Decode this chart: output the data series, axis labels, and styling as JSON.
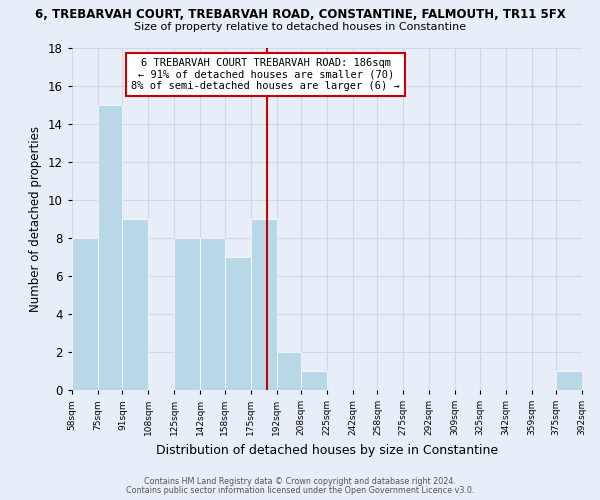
{
  "title_top": "6, TREBARVAH COURT, TREBARVAH ROAD, CONSTANTINE, FALMOUTH, TR11 5FX",
  "title_sub": "Size of property relative to detached houses in Constantine",
  "xlabel": "Distribution of detached houses by size in Constantine",
  "ylabel": "Number of detached properties",
  "bin_edges": [
    58,
    75,
    91,
    108,
    125,
    142,
    158,
    175,
    192,
    208,
    225,
    242,
    258,
    275,
    292,
    309,
    325,
    342,
    359,
    375,
    392
  ],
  "counts": [
    8,
    15,
    9,
    0,
    8,
    8,
    7,
    9,
    2,
    1,
    0,
    0,
    0,
    0,
    0,
    0,
    0,
    0,
    0,
    1
  ],
  "bar_color": "#b8d8e8",
  "bar_edge_color": "#ffffff",
  "reference_line_x": 186,
  "reference_line_color": "#cc0000",
  "annotation_title": "6 TREBARVAH COURT TREBARVAH ROAD: 186sqm",
  "annotation_line1": "← 91% of detached houses are smaller (70)",
  "annotation_line2": "8% of semi-detached houses are larger (6) →",
  "annotation_box_color": "#ffffff",
  "annotation_box_edge": "#cc0000",
  "ylim": [
    0,
    18
  ],
  "yticks": [
    0,
    2,
    4,
    6,
    8,
    10,
    12,
    14,
    16,
    18
  ],
  "footer1": "Contains HM Land Registry data © Crown copyright and database right 2024.",
  "footer2": "Contains public sector information licensed under the Open Government Licence v3.0.",
  "background_color": "#e8eef8",
  "grid_color": "#d0d8e8"
}
